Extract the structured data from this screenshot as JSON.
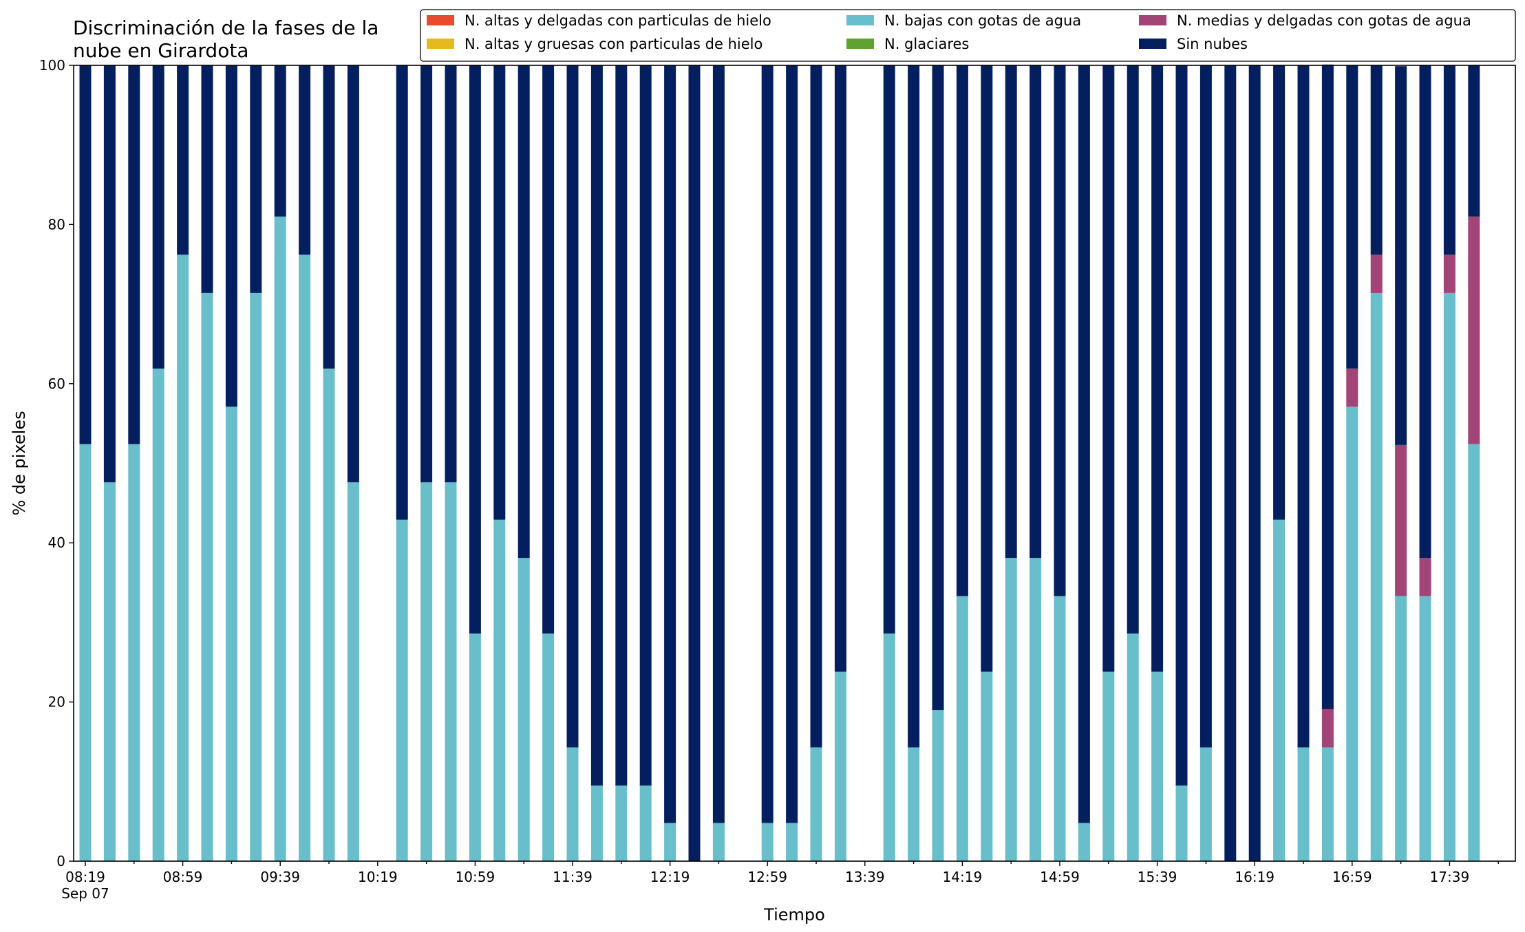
{
  "chart_data": {
    "type": "bar",
    "stacked": true,
    "title_lines": [
      "Discriminación de la fases de la",
      "nube en Girardota"
    ],
    "xlabel": "Tiempo",
    "ylabel": "% de pixeles",
    "ylim": [
      0,
      100
    ],
    "yticks": [
      "0",
      "20",
      "40",
      "60",
      "80",
      "100"
    ],
    "x_major_labels": [
      "08:19",
      "08:59",
      "09:39",
      "10:19",
      "10:59",
      "11:39",
      "12:19",
      "12:59",
      "13:39",
      "14:19",
      "14:59",
      "15:39",
      "16:19",
      "16:59",
      "17:39"
    ],
    "x_date_label": "Sep 07",
    "grid": false,
    "legend_position": "top-right",
    "times": [
      "08:19",
      "08:29",
      "08:39",
      "08:49",
      "08:59",
      "09:09",
      "09:19",
      "09:29",
      "09:39",
      "09:49",
      "09:59",
      "10:09",
      "10:19",
      "10:29",
      "10:39",
      "10:49",
      "10:59",
      "11:09",
      "11:19",
      "11:29",
      "11:39",
      "11:49",
      "11:59",
      "12:09",
      "12:19",
      "12:29",
      "12:39",
      "12:49",
      "12:59",
      "13:09",
      "13:19",
      "13:29",
      "13:39",
      "13:49",
      "13:59",
      "14:09",
      "14:19",
      "14:29",
      "14:39",
      "14:49",
      "14:59",
      "15:09",
      "15:19",
      "15:29",
      "15:39",
      "15:49",
      "15:59",
      "16:09",
      "16:19",
      "16:29",
      "16:39",
      "16:49",
      "16:59",
      "17:09",
      "17:19",
      "17:29",
      "17:39",
      "17:49",
      "17:59"
    ],
    "series": [
      {
        "name": "N. altas y delgadas con particulas de hielo",
        "color": "#ea4b2c",
        "values": [
          0,
          0,
          0,
          0,
          0,
          0,
          0,
          0,
          0,
          0,
          0,
          0,
          null,
          0,
          0,
          0,
          0,
          0,
          0,
          0,
          0,
          0,
          0,
          0,
          0,
          0,
          0,
          null,
          0,
          0,
          0,
          0,
          null,
          0,
          0,
          0,
          0,
          0,
          0,
          0,
          0,
          0,
          0,
          0,
          0,
          0,
          0,
          0,
          0,
          0,
          0,
          0,
          0,
          0,
          0,
          0,
          0,
          0,
          0
        ]
      },
      {
        "name": "N. altas y gruesas con particulas de hielo",
        "color": "#e6b91e",
        "values": [
          0,
          0,
          0,
          0,
          0,
          0,
          0,
          0,
          0,
          0,
          0,
          0,
          null,
          0,
          0,
          0,
          0,
          0,
          0,
          0,
          0,
          0,
          0,
          0,
          0,
          0,
          0,
          null,
          0,
          0,
          0,
          0,
          null,
          0,
          0,
          0,
          0,
          0,
          0,
          0,
          0,
          0,
          0,
          0,
          0,
          0,
          0,
          0,
          0,
          0,
          0,
          0,
          0,
          0,
          0,
          0,
          0,
          0,
          0
        ]
      },
      {
        "name": "N. bajas con gotas de agua",
        "color": "#67bfcb",
        "values": [
          52.4,
          47.6,
          52.4,
          61.9,
          76.2,
          71.4,
          57.1,
          71.4,
          81.0,
          76.2,
          61.9,
          47.6,
          null,
          42.9,
          47.6,
          47.6,
          28.6,
          42.9,
          38.1,
          28.6,
          14.3,
          9.5,
          9.5,
          9.5,
          4.8,
          0,
          4.8,
          null,
          4.8,
          4.8,
          14.3,
          23.8,
          null,
          28.6,
          14.3,
          19.0,
          33.3,
          23.8,
          38.1,
          38.1,
          33.3,
          4.8,
          23.8,
          28.6,
          23.8,
          9.5,
          14.3,
          0,
          0,
          42.9,
          14.3,
          14.3,
          57.1,
          71.4,
          33.3,
          33.3,
          71.4,
          52.4,
          null
        ]
      },
      {
        "name": "N. glaciares",
        "color": "#5ea22f",
        "values": [
          0,
          0,
          0,
          0,
          0,
          0,
          0,
          0,
          0,
          0,
          0,
          0,
          null,
          0,
          0,
          0,
          0,
          0,
          0,
          0,
          0,
          0,
          0,
          0,
          0,
          0,
          0,
          null,
          0,
          0,
          0,
          0,
          null,
          0,
          0,
          0,
          0,
          0,
          0,
          0,
          0,
          0,
          0,
          0,
          0,
          0,
          0,
          0,
          0,
          0,
          0,
          0,
          0,
          0,
          0,
          0,
          0,
          0,
          null
        ]
      },
      {
        "name": "N. medias y delgadas con gotas de agua",
        "color": "#a24576",
        "values": [
          0,
          0,
          0,
          0,
          0,
          0,
          0,
          0,
          0,
          0,
          0,
          0,
          null,
          0,
          0,
          0,
          0,
          0,
          0,
          0,
          0,
          0,
          0,
          0,
          0,
          0,
          0,
          null,
          0,
          0,
          0,
          0,
          null,
          0,
          0,
          0,
          0,
          0,
          0,
          0,
          0,
          0,
          0,
          0,
          0,
          0,
          0,
          0,
          0,
          0,
          0,
          4.8,
          4.8,
          4.8,
          19.0,
          4.8,
          4.8,
          28.6,
          null
        ]
      },
      {
        "name": "Sin nubes",
        "color": "#041f60",
        "values": [
          47.6,
          52.4,
          47.6,
          38.1,
          23.8,
          28.6,
          42.9,
          28.6,
          19.0,
          23.8,
          38.1,
          52.4,
          null,
          57.1,
          52.4,
          52.4,
          71.4,
          57.1,
          61.9,
          71.4,
          85.7,
          90.5,
          90.5,
          90.5,
          95.2,
          100,
          95.2,
          null,
          95.2,
          95.2,
          85.7,
          76.2,
          null,
          71.4,
          85.7,
          81.0,
          66.7,
          76.2,
          61.9,
          61.9,
          66.7,
          95.2,
          76.2,
          71.4,
          76.2,
          90.5,
          85.7,
          100,
          100,
          57.1,
          85.7,
          81.0,
          38.1,
          23.8,
          47.6,
          61.9,
          23.8,
          19.0,
          null
        ]
      }
    ]
  }
}
